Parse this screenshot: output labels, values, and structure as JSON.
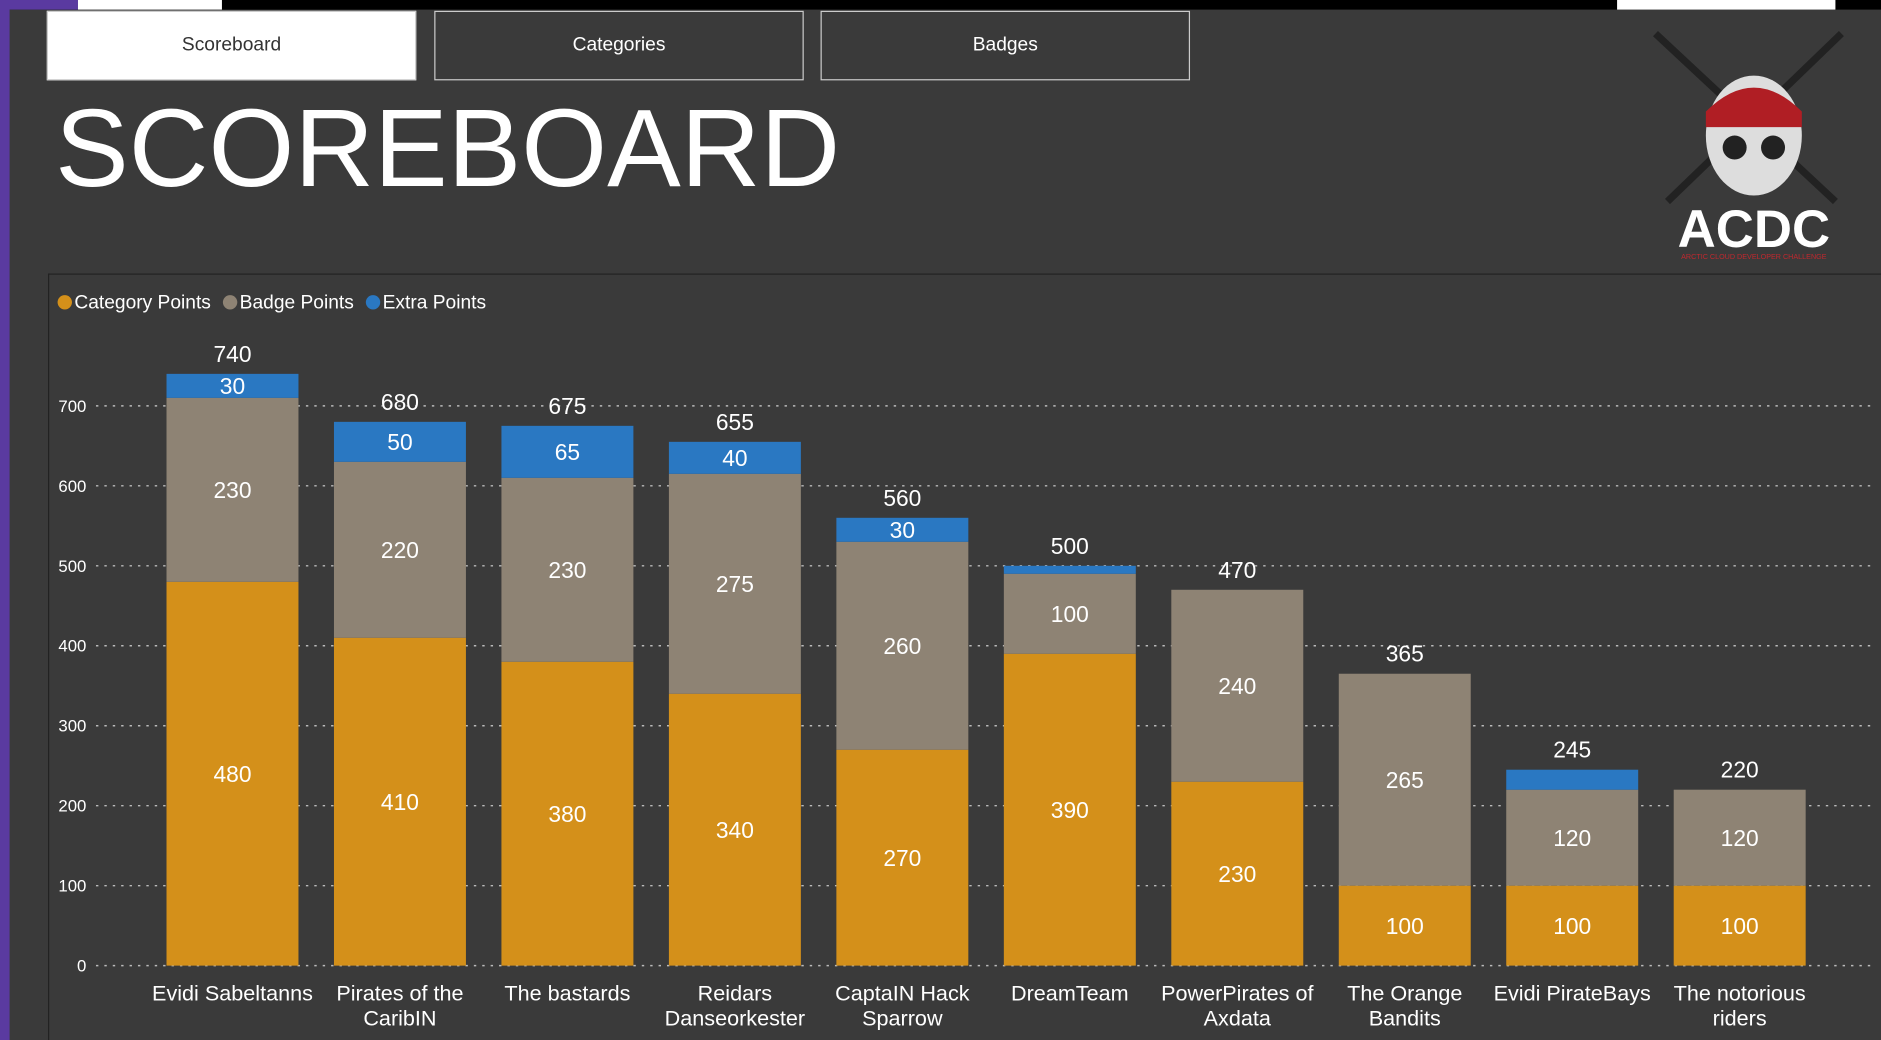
{
  "tabs": [
    "Scoreboard",
    "Categories",
    "Badges"
  ],
  "header": {
    "title": "SCOREBOARD"
  },
  "logo": {
    "title": "ACDC",
    "subtitle": "ARCTIC CLOUD DEVELOPER CHALLENGE"
  },
  "chart_data": {
    "type": "stacked_bar",
    "categories": [
      "Evidi Sabeltanns",
      "Pirates of the CaribIN",
      "The bastards",
      "Reidars Danseorkester",
      "CaptaIN Hack Sparrow",
      "DreamTeam",
      "PowerPirates of Axdata",
      "The Orange Bandits",
      "Evidi PirateBays",
      "The notorious riders"
    ],
    "series": [
      {
        "name": "Category Points",
        "color": "#d4901a",
        "values": [
          480,
          410,
          380,
          340,
          270,
          390,
          230,
          100,
          100,
          100
        ]
      },
      {
        "name": "Badge Points",
        "color": "#8e8374",
        "values": [
          230,
          220,
          230,
          275,
          260,
          100,
          240,
          265,
          120,
          120
        ]
      },
      {
        "name": "Extra Points",
        "color": "#2a78c2",
        "values": [
          30,
          50,
          65,
          40,
          30,
          10,
          0,
          0,
          25,
          0
        ],
        "value_labels": [
          "30",
          "50",
          "65",
          "40",
          "30",
          null,
          null,
          null,
          null,
          null
        ]
      }
    ],
    "totals": [
      740,
      680,
      675,
      655,
      560,
      500,
      470,
      365,
      245,
      220
    ],
    "ylim": [
      0,
      750
    ],
    "yticks": [
      0,
      100,
      200,
      300,
      400,
      500,
      600,
      700
    ],
    "grid": true,
    "legend": "top-left"
  }
}
